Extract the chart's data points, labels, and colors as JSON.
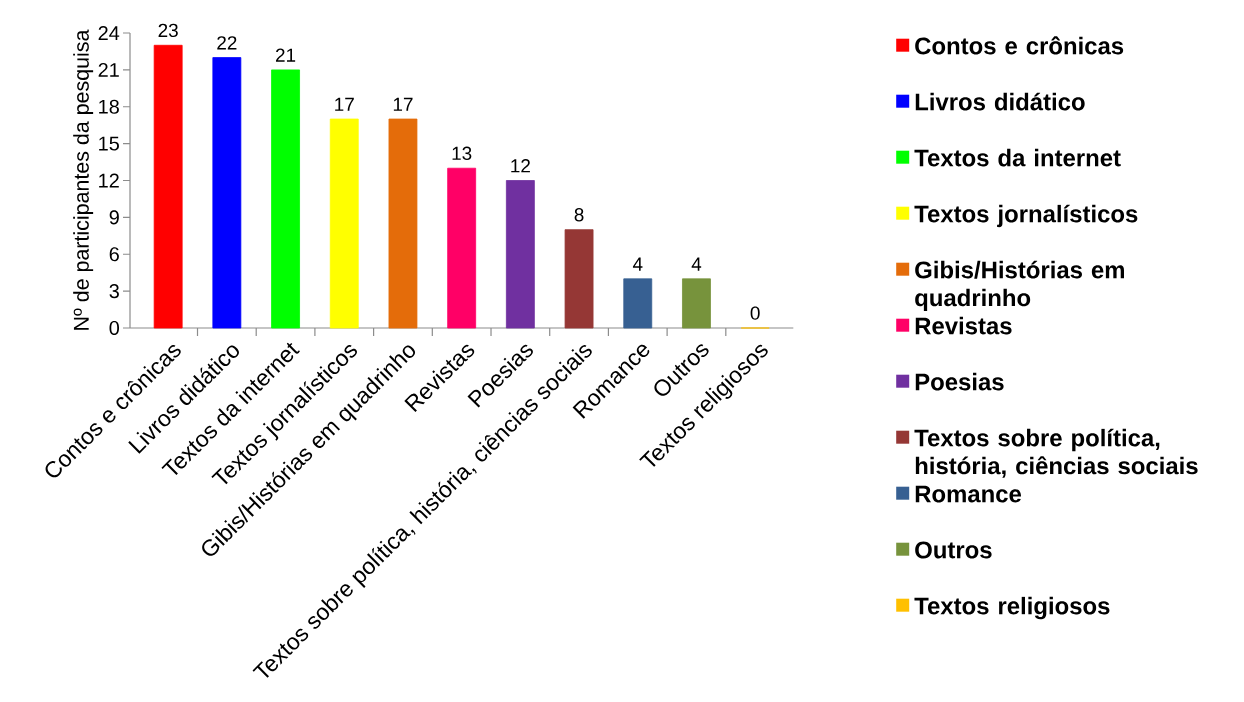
{
  "chart_data": {
    "type": "bar",
    "ylabel": "Nº de participantes da pesquisa",
    "categories": [
      "Contos e crônicas",
      "Livros didático",
      "Textos da internet",
      "Textos jornalísticos",
      "Gibis/Histórias em quadrinho",
      "Revistas",
      "Poesias",
      "Textos sobre política, história, ciências sociais",
      "Romance",
      "Outros",
      "Textos religiosos"
    ],
    "series": [
      {
        "name": "Contos e crônicas",
        "color": "#ff0000",
        "values": [
          23,
          null,
          null,
          null,
          null,
          null,
          null,
          null,
          null,
          null,
          null
        ]
      },
      {
        "name": "Livros didático",
        "color": "#0000ff",
        "values": [
          null,
          22,
          null,
          null,
          null,
          null,
          null,
          null,
          null,
          null,
          null
        ]
      },
      {
        "name": "Textos da internet",
        "color": "#00ff00",
        "values": [
          null,
          null,
          21,
          null,
          null,
          null,
          null,
          null,
          null,
          null,
          null
        ]
      },
      {
        "name": "Textos jornalísticos",
        "color": "#ffff00",
        "values": [
          null,
          null,
          null,
          17,
          null,
          null,
          null,
          null,
          null,
          null,
          null
        ]
      },
      {
        "name": "Gibis/Histórias em quadrinho",
        "color": "#e46c0a",
        "values": [
          null,
          null,
          null,
          null,
          17,
          null,
          null,
          null,
          null,
          null,
          null
        ]
      },
      {
        "name": "Revistas",
        "color": "#ff0066",
        "values": [
          null,
          null,
          null,
          null,
          null,
          13,
          null,
          null,
          null,
          null,
          null
        ]
      },
      {
        "name": "Poesias",
        "color": "#7030a0",
        "values": [
          null,
          null,
          null,
          null,
          null,
          null,
          12,
          null,
          null,
          null,
          null
        ]
      },
      {
        "name": "Textos sobre política, história, ciências sociais",
        "color": "#953735",
        "values": [
          null,
          null,
          null,
          null,
          null,
          null,
          null,
          8,
          null,
          null,
          null
        ]
      },
      {
        "name": "Romance",
        "color": "#376092",
        "values": [
          null,
          null,
          null,
          null,
          null,
          null,
          null,
          null,
          4,
          null,
          null
        ]
      },
      {
        "name": "Outros",
        "color": "#77933c",
        "values": [
          null,
          null,
          null,
          null,
          null,
          null,
          null,
          null,
          null,
          4,
          null
        ]
      },
      {
        "name": "Textos religiosos",
        "color": "#ffc000",
        "values": [
          null,
          null,
          null,
          null,
          null,
          null,
          null,
          null,
          null,
          null,
          0
        ]
      }
    ],
    "ylim": [
      0,
      24
    ],
    "yticks": [
      0,
      3,
      6,
      9,
      12,
      15,
      18,
      21,
      24
    ],
    "data_labels": true,
    "legend": "right"
  }
}
